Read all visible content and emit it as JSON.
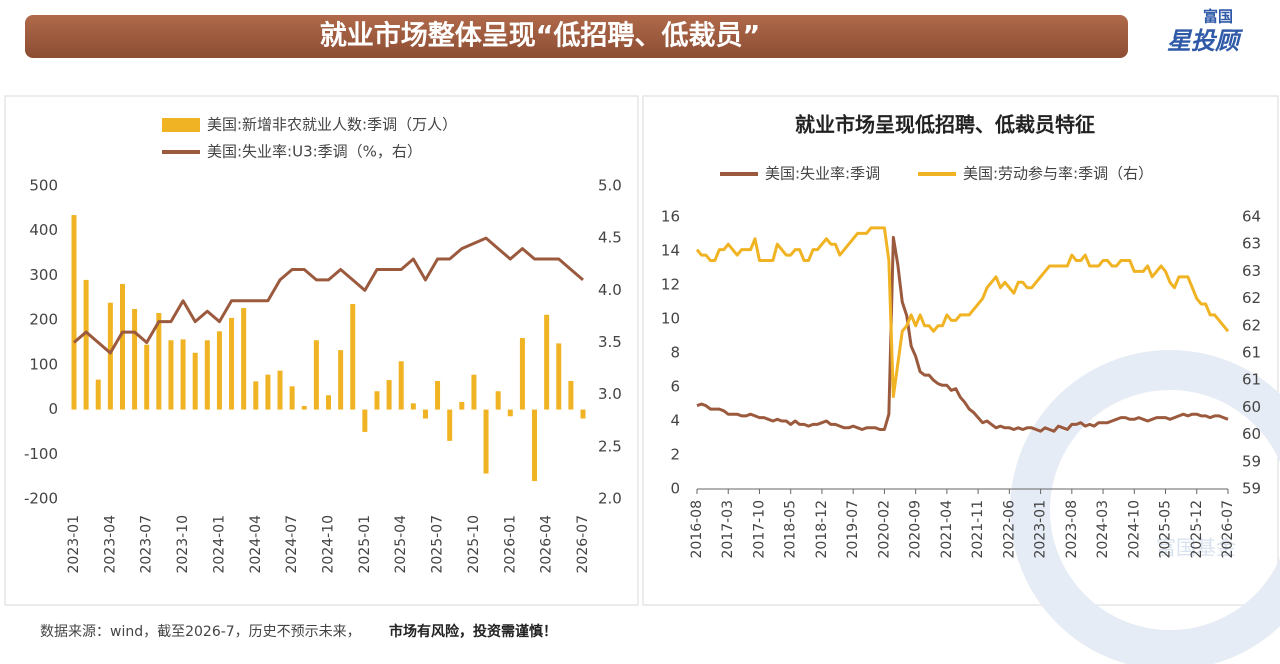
{
  "header": {
    "title": "就业市场整体呈现“低招聘、低裁员”",
    "logo_top": "富国",
    "logo_main": "星投顾"
  },
  "footer": {
    "source": "数据来源：wind，截至2026-7，历史不预示未来，",
    "warning": "市场有风险，投资需谨慎！"
  },
  "watermark": "富国基金",
  "chart_data": [
    {
      "type": "bar",
      "categories": [
        "2023-01",
        null,
        null,
        "2023-04",
        null,
        null,
        "2023-07",
        null,
        null,
        "2023-10",
        null,
        null,
        "2024-01",
        null,
        null,
        "2024-04",
        null,
        null,
        "2024-07",
        null,
        null,
        "2024-10",
        null,
        null,
        "2025-01",
        null,
        null,
        "2025-04",
        null,
        null,
        "2025-07",
        null,
        null,
        "2025-10",
        null,
        null,
        "2026-01",
        null,
        null,
        "2026-04",
        null,
        null,
        "2026-07"
      ],
      "series": [
        {
          "name": "美国:新增非农就业人数:季调（万人）",
          "type": "bar",
          "color": "#f0b323",
          "values": [
            435,
            290,
            67,
            239,
            281,
            225,
            145,
            216,
            155,
            157,
            127,
            155,
            175,
            205,
            227,
            63,
            78,
            87,
            52,
            8,
            155,
            32,
            133,
            236,
            -50,
            41,
            66,
            108,
            14,
            -20,
            64,
            -70,
            17,
            78,
            -143,
            41,
            -15,
            160,
            -160,
            212,
            148,
            64,
            -20
          ]
        },
        {
          "name": "美国:失业率:U3:季调（%，右）",
          "type": "line",
          "axis": "y2",
          "color": "#9b5a3e",
          "values": [
            3.5,
            3.6,
            3.5,
            3.4,
            3.6,
            3.6,
            3.5,
            3.7,
            3.7,
            3.9,
            3.7,
            3.8,
            3.7,
            3.9,
            3.9,
            3.9,
            3.9,
            4.1,
            4.2,
            4.2,
            4.1,
            4.1,
            4.2,
            4.1,
            4.0,
            4.2,
            4.2,
            4.2,
            4.3,
            4.1,
            4.3,
            4.3,
            4.4,
            4.45,
            4.5,
            4.4,
            4.3,
            4.4,
            4.3,
            4.3,
            4.3,
            4.2,
            4.1
          ]
        }
      ],
      "ylim": [
        -200,
        500
      ],
      "yticks": [
        500,
        400,
        300,
        200,
        100,
        0,
        -100,
        -200
      ],
      "y2lim": [
        2,
        5
      ],
      "y2ticks": [
        {
          "value": 5,
          "label": "5.0"
        },
        {
          "value": 4.5,
          "label": "4.5"
        },
        {
          "value": 4,
          "label": "4.0"
        },
        {
          "value": 3.5,
          "label": "3.5"
        },
        {
          "value": 3,
          "label": "3.0"
        },
        {
          "value": 2.5,
          "label": "2.5"
        },
        {
          "value": 2,
          "label": "2.0"
        }
      ]
    },
    {
      "type": "line",
      "title": "就业市场呈现低招聘、低裁员特征",
      "categories": [
        "2016-08",
        null,
        null,
        null,
        null,
        null,
        null,
        "2017-03",
        null,
        null,
        null,
        null,
        null,
        null,
        "2017-10",
        null,
        null,
        null,
        null,
        null,
        null,
        "2018-05",
        null,
        null,
        null,
        null,
        null,
        null,
        "2018-12",
        null,
        null,
        null,
        null,
        null,
        null,
        "2019-07",
        null,
        null,
        null,
        null,
        null,
        null,
        "2020-02",
        null,
        null,
        null,
        null,
        null,
        null,
        "2020-09",
        null,
        null,
        null,
        null,
        null,
        null,
        "2021-04",
        null,
        null,
        null,
        null,
        null,
        null,
        "2021-11",
        null,
        null,
        null,
        null,
        null,
        null,
        "2022-06",
        null,
        null,
        null,
        null,
        null,
        null,
        "2023-01",
        null,
        null,
        null,
        null,
        null,
        null,
        "2023-08",
        null,
        null,
        null,
        null,
        null,
        null,
        "2024-03",
        null,
        null,
        null,
        null,
        null,
        null,
        "2024-10",
        null,
        null,
        null,
        null,
        null,
        null,
        "2025-05",
        null,
        null,
        null,
        null,
        null,
        null,
        "2025-12",
        null,
        null,
        null,
        null,
        null,
        null,
        "2026-07"
      ],
      "series": [
        {
          "name": "美国:失业率:季调",
          "color": "#9b5a3e",
          "values": [
            4.9,
            5.0,
            4.9,
            4.7,
            4.7,
            4.7,
            4.6,
            4.4,
            4.4,
            4.4,
            4.3,
            4.3,
            4.4,
            4.3,
            4.2,
            4.2,
            4.1,
            4.0,
            4.1,
            4.0,
            4.0,
            3.8,
            4.0,
            3.8,
            3.8,
            3.7,
            3.8,
            3.8,
            3.9,
            4.0,
            3.8,
            3.8,
            3.7,
            3.6,
            3.6,
            3.7,
            3.6,
            3.5,
            3.6,
            3.6,
            3.6,
            3.5,
            3.5,
            4.4,
            14.8,
            13.2,
            11.0,
            10.2,
            8.4,
            7.8,
            6.9,
            6.7,
            6.7,
            6.4,
            6.2,
            6.1,
            6.1,
            5.8,
            5.9,
            5.4,
            5.1,
            4.7,
            4.5,
            4.2,
            3.9,
            4.0,
            3.8,
            3.6,
            3.7,
            3.6,
            3.6,
            3.5,
            3.6,
            3.5,
            3.6,
            3.6,
            3.5,
            3.4,
            3.6,
            3.5,
            3.4,
            3.7,
            3.6,
            3.5,
            3.8,
            3.8,
            3.9,
            3.7,
            3.8,
            3.7,
            3.9,
            3.9,
            3.9,
            4.0,
            4.1,
            4.2,
            4.2,
            4.1,
            4.1,
            4.2,
            4.1,
            4.0,
            4.1,
            4.2,
            4.2,
            4.2,
            4.1,
            4.2,
            4.3,
            4.4,
            4.3,
            4.4,
            4.4,
            4.3,
            4.3,
            4.2,
            4.3,
            4.3,
            4.2,
            4.1
          ]
        },
        {
          "name": "美国:劳动参与率:季调（右）",
          "color": "#f0b323",
          "axis": "y2",
          "values": [
            62.9,
            62.8,
            62.8,
            62.7,
            62.7,
            62.9,
            62.9,
            63.0,
            62.9,
            62.8,
            62.9,
            62.9,
            62.9,
            63.1,
            62.7,
            62.7,
            62.7,
            62.7,
            63.0,
            62.9,
            62.8,
            62.8,
            62.9,
            62.9,
            62.7,
            62.7,
            62.9,
            62.9,
            63.0,
            63.1,
            63.0,
            63.0,
            62.8,
            62.9,
            63.0,
            63.1,
            63.2,
            63.2,
            63.2,
            63.3,
            63.3,
            63.3,
            63.3,
            62.7,
            60.2,
            60.8,
            61.4,
            61.5,
            61.7,
            61.5,
            61.7,
            61.5,
            61.5,
            61.4,
            61.5,
            61.5,
            61.7,
            61.6,
            61.6,
            61.7,
            61.7,
            61.7,
            61.8,
            61.9,
            62.0,
            62.2,
            62.3,
            62.4,
            62.2,
            62.3,
            62.2,
            62.1,
            62.3,
            62.3,
            62.2,
            62.2,
            62.3,
            62.4,
            62.5,
            62.6,
            62.6,
            62.6,
            62.6,
            62.6,
            62.8,
            62.7,
            62.7,
            62.8,
            62.6,
            62.6,
            62.6,
            62.7,
            62.7,
            62.6,
            62.6,
            62.7,
            62.7,
            62.7,
            62.5,
            62.5,
            62.5,
            62.6,
            62.4,
            62.5,
            62.6,
            62.5,
            62.3,
            62.2,
            62.4,
            62.4,
            62.4,
            62.2,
            62.0,
            61.9,
            61.9,
            61.7,
            61.7,
            61.6,
            61.5,
            61.4
          ]
        }
      ],
      "ylim": [
        0,
        16
      ],
      "yticks": [
        0,
        2,
        4,
        6,
        8,
        10,
        12,
        14,
        16
      ],
      "y2lim": [
        58.5,
        63.5
      ],
      "y2ticks": [
        {
          "value": 63.5,
          "label": "64"
        },
        {
          "value": 63,
          "label": "63"
        },
        {
          "value": 62.5,
          "label": "63"
        },
        {
          "value": 62,
          "label": "62"
        },
        {
          "value": 61.5,
          "label": "62"
        },
        {
          "value": 61,
          "label": "61"
        },
        {
          "value": 60.5,
          "label": "61"
        },
        {
          "value": 60,
          "label": "60"
        },
        {
          "value": 59.5,
          "label": "60"
        },
        {
          "value": 59,
          "label": "59"
        },
        {
          "value": 58.5,
          "label": "59"
        }
      ]
    }
  ]
}
